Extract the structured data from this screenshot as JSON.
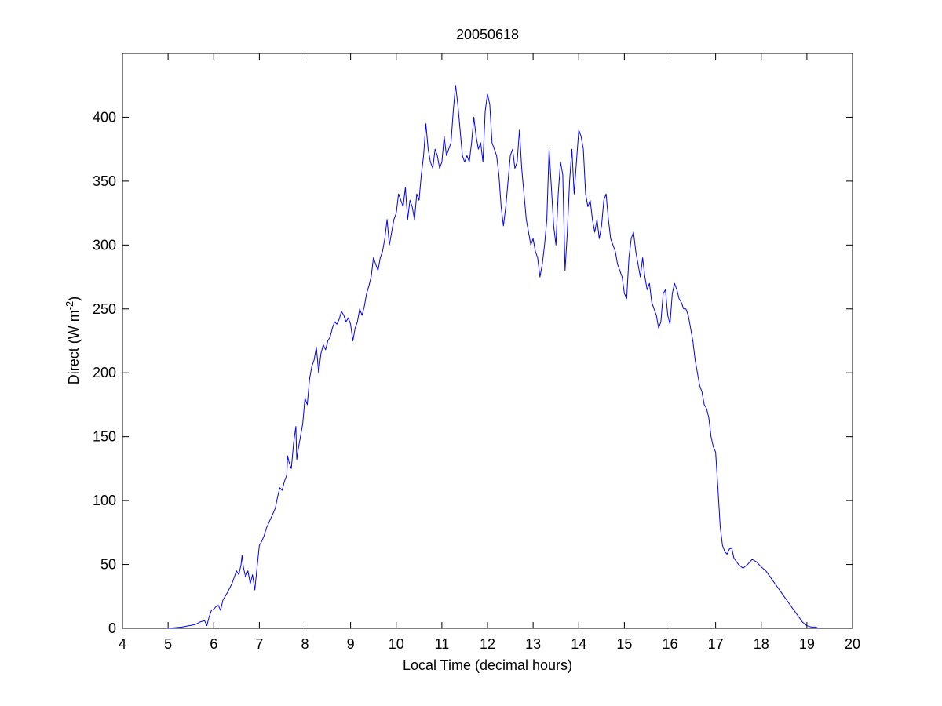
{
  "chart_data": {
    "type": "line",
    "title": "20050618",
    "xlabel": "Local Time (decimal hours)",
    "ylabel": {
      "text": "Direct (W m",
      "superscript": "-2",
      "suffix": ")"
    },
    "xlim": [
      4,
      20
    ],
    "ylim": [
      0,
      450
    ],
    "xticks": [
      4,
      5,
      6,
      7,
      8,
      9,
      10,
      11,
      12,
      13,
      14,
      15,
      16,
      17,
      18,
      19,
      20
    ],
    "yticks": [
      0,
      50,
      100,
      150,
      200,
      250,
      300,
      350,
      400
    ],
    "grid": false,
    "legend": "none",
    "colors": {
      "line": "#0000ff",
      "axes": "#000000",
      "background": "#ffffff"
    },
    "series": [
      {
        "x": [
          5.0,
          5.3,
          5.6,
          5.7,
          5.8,
          5.85,
          5.9,
          5.95,
          6.0,
          6.05,
          6.1,
          6.15,
          6.2,
          6.25,
          6.3,
          6.4,
          6.5,
          6.55,
          6.6,
          6.62,
          6.65,
          6.7,
          6.75,
          6.8,
          6.85,
          6.9,
          6.95,
          7.0,
          7.05,
          7.1,
          7.15,
          7.2,
          7.3,
          7.35,
          7.4,
          7.45,
          7.5,
          7.55,
          7.6,
          7.62,
          7.65,
          7.7,
          7.75,
          7.8,
          7.82,
          7.85,
          7.9,
          7.95,
          8.0,
          8.05,
          8.1,
          8.15,
          8.2,
          8.25,
          8.3,
          8.35,
          8.4,
          8.45,
          8.5,
          8.55,
          8.6,
          8.65,
          8.7,
          8.75,
          8.8,
          8.85,
          8.9,
          8.95,
          9.0,
          9.05,
          9.1,
          9.15,
          9.2,
          9.25,
          9.3,
          9.35,
          9.4,
          9.45,
          9.5,
          9.55,
          9.6,
          9.65,
          9.7,
          9.75,
          9.8,
          9.85,
          9.9,
          9.95,
          10.0,
          10.05,
          10.1,
          10.15,
          10.2,
          10.25,
          10.3,
          10.35,
          10.4,
          10.45,
          10.5,
          10.55,
          10.6,
          10.65,
          10.7,
          10.75,
          10.8,
          10.85,
          10.9,
          10.95,
          11.0,
          11.05,
          11.1,
          11.15,
          11.2,
          11.25,
          11.3,
          11.35,
          11.4,
          11.45,
          11.5,
          11.55,
          11.6,
          11.65,
          11.7,
          11.75,
          11.8,
          11.85,
          11.9,
          11.95,
          12.0,
          12.05,
          12.1,
          12.15,
          12.2,
          12.25,
          12.3,
          12.35,
          12.4,
          12.45,
          12.5,
          12.55,
          12.6,
          12.65,
          12.7,
          12.75,
          12.8,
          12.85,
          12.9,
          12.95,
          13.0,
          13.05,
          13.1,
          13.15,
          13.2,
          13.25,
          13.3,
          13.35,
          13.4,
          13.45,
          13.5,
          13.55,
          13.6,
          13.65,
          13.7,
          13.75,
          13.8,
          13.85,
          13.9,
          13.95,
          14.0,
          14.05,
          14.1,
          14.15,
          14.2,
          14.25,
          14.3,
          14.35,
          14.4,
          14.45,
          14.5,
          14.55,
          14.6,
          14.65,
          14.7,
          14.75,
          14.8,
          14.85,
          14.9,
          14.95,
          15.0,
          15.05,
          15.1,
          15.15,
          15.2,
          15.25,
          15.3,
          15.35,
          15.4,
          15.45,
          15.5,
          15.55,
          15.6,
          15.65,
          15.7,
          15.75,
          15.8,
          15.85,
          15.9,
          15.95,
          16.0,
          16.05,
          16.1,
          16.15,
          16.2,
          16.25,
          16.3,
          16.35,
          16.4,
          16.45,
          16.5,
          16.55,
          16.6,
          16.65,
          16.7,
          16.75,
          16.8,
          16.85,
          16.9,
          16.95,
          17.0,
          17.05,
          17.1,
          17.15,
          17.2,
          17.25,
          17.3,
          17.35,
          17.4,
          17.5,
          17.6,
          17.7,
          17.8,
          17.9,
          18.0,
          18.1,
          18.2,
          18.3,
          18.4,
          18.5,
          18.6,
          18.7,
          18.8,
          18.9,
          19.0,
          19.1,
          19.2,
          19.25
        ],
        "y": [
          0,
          1,
          3,
          5,
          6,
          2,
          9,
          14,
          15,
          17,
          18,
          14,
          22,
          25,
          28,
          35,
          45,
          42,
          50,
          57,
          48,
          40,
          45,
          35,
          42,
          30,
          48,
          65,
          68,
          72,
          78,
          82,
          90,
          94,
          103,
          110,
          108,
          115,
          120,
          135,
          130,
          125,
          145,
          158,
          132,
          140,
          150,
          160,
          180,
          175,
          195,
          205,
          210,
          220,
          200,
          215,
          222,
          218,
          225,
          228,
          235,
          240,
          238,
          242,
          248,
          245,
          240,
          243,
          238,
          225,
          235,
          240,
          250,
          245,
          252,
          262,
          268,
          275,
          290,
          285,
          280,
          290,
          295,
          305,
          320,
          300,
          310,
          320,
          325,
          340,
          335,
          330,
          345,
          320,
          335,
          330,
          320,
          340,
          335,
          355,
          370,
          395,
          375,
          365,
          360,
          375,
          370,
          360,
          365,
          385,
          370,
          375,
          380,
          405,
          425,
          410,
          390,
          370,
          365,
          370,
          365,
          380,
          400,
          385,
          375,
          380,
          365,
          405,
          418,
          410,
          380,
          375,
          370,
          355,
          330,
          315,
          330,
          350,
          370,
          375,
          360,
          365,
          390,
          360,
          340,
          320,
          310,
          300,
          305,
          295,
          290,
          275,
          285,
          300,
          320,
          375,
          345,
          315,
          300,
          340,
          365,
          355,
          280,
          310,
          350,
          375,
          340,
          365,
          390,
          385,
          375,
          340,
          330,
          335,
          320,
          310,
          320,
          305,
          315,
          335,
          340,
          320,
          305,
          300,
          295,
          285,
          280,
          275,
          262,
          258,
          290,
          305,
          310,
          295,
          285,
          275,
          290,
          275,
          265,
          270,
          255,
          250,
          245,
          235,
          240,
          262,
          265,
          245,
          238,
          262,
          270,
          265,
          258,
          255,
          250,
          250,
          245,
          235,
          225,
          210,
          200,
          190,
          185,
          175,
          172,
          165,
          150,
          142,
          138,
          110,
          80,
          65,
          60,
          58,
          62,
          63,
          55,
          50,
          47,
          50,
          54,
          52,
          48,
          45,
          40,
          35,
          30,
          25,
          20,
          15,
          10,
          5,
          2,
          1,
          1,
          0
        ]
      }
    ]
  }
}
